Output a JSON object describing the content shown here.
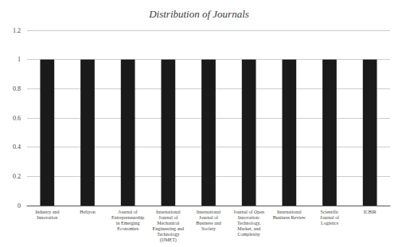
{
  "chart_data": {
    "type": "bar",
    "title": "Distribution of Journals",
    "categories": [
      "Industry and\nInnovation",
      "Heliyon",
      "Journal of\nEntrepreneurship\nin Emerging\nEconomies",
      "International\nJournal of\nMechanical\nEngineering and\nTechnology\n(IJMET)",
      "International\nJournal of\nBusiness and\nSociety",
      "Journal of Open\nInnovation:\nTechnology,\nMarket, and\nComplexity",
      "International\nBusiness Review",
      "Scientific\nJournal of\nLogistics",
      "ICBIR"
    ],
    "values": [
      1,
      1,
      1,
      1,
      1,
      1,
      1,
      1,
      1
    ],
    "color": "#1a1a1a",
    "ylim": [
      0,
      1.2
    ],
    "yticks": [
      0,
      0.2,
      0.4,
      0.6,
      0.8,
      1,
      1.2
    ],
    "grid": true
  }
}
